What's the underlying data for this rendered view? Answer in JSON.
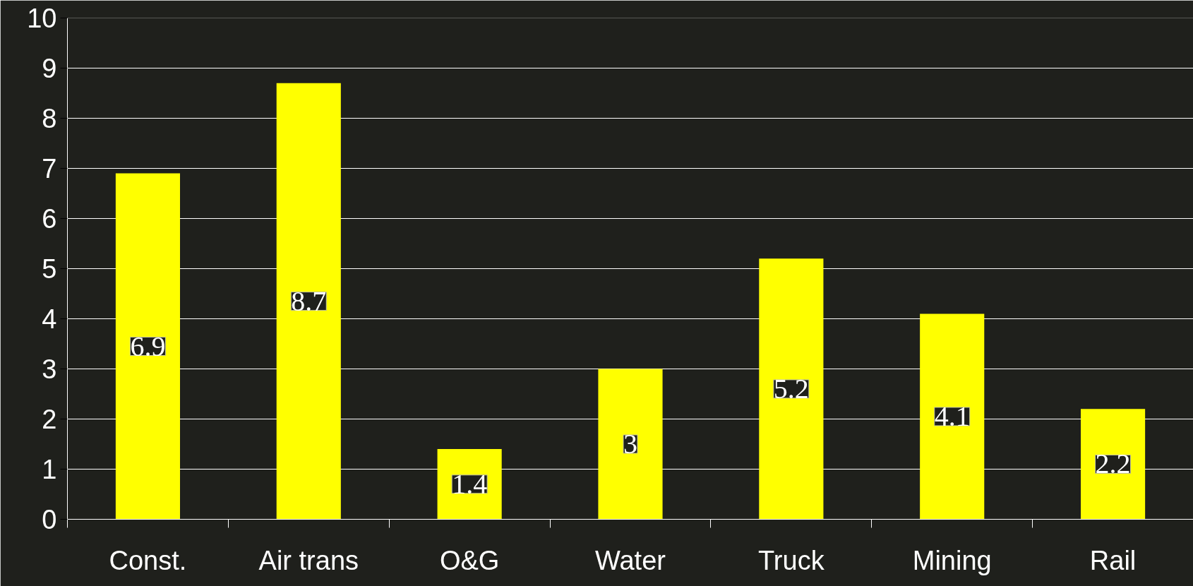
{
  "chart_data": {
    "type": "bar",
    "categories": [
      "Const.",
      "Air trans",
      "O&G",
      "Water",
      "Truck",
      "Mining",
      "Rail"
    ],
    "values": [
      6.9,
      8.7,
      1.4,
      3,
      5.2,
      4.1,
      2.2
    ],
    "color": "#ffff00",
    "ylim": [
      0,
      10
    ],
    "yticks": [
      0,
      1,
      2,
      3,
      4,
      5,
      6,
      7,
      8,
      9,
      10
    ],
    "grid": "y",
    "data_labels": true
  }
}
